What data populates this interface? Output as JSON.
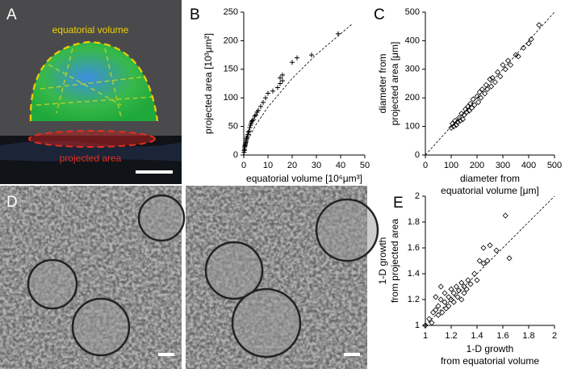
{
  "panel_labels": [
    "A",
    "B",
    "C",
    "D",
    "E"
  ],
  "image_a": {
    "labels": [
      "equatorial volume",
      "projected area"
    ]
  },
  "chart_data": [
    {
      "type": "scatter",
      "marker": "plus",
      "color": "#000000",
      "xlabel": "equatorial volume [10⁶μm³]",
      "ylabel": "projected area [10³μm²]",
      "xlim": [
        0,
        50
      ],
      "ylim": [
        0,
        250
      ],
      "xticks": [
        0,
        10,
        20,
        30,
        40,
        50
      ],
      "yticks": [
        0,
        50,
        100,
        150,
        200,
        250
      ],
      "x": [
        0.1,
        0.2,
        0.3,
        0.4,
        0.5,
        0.6,
        0.7,
        0.8,
        1,
        1.1,
        1.3,
        1.5,
        1.7,
        2,
        2.2,
        2.5,
        2.8,
        3,
        3.3,
        3.5,
        4,
        4.5,
        5,
        5.5,
        6,
        7,
        8,
        9,
        10,
        12,
        14,
        15,
        15,
        16,
        16,
        20,
        22,
        28,
        39
      ],
      "values": [
        5,
        8,
        10,
        14,
        16,
        18,
        20,
        22,
        25,
        28,
        30,
        33,
        36,
        40,
        42,
        48,
        52,
        55,
        58,
        60,
        62,
        68,
        70,
        75,
        78,
        85,
        92,
        100,
        108,
        112,
        118,
        125,
        135,
        140,
        130,
        162,
        170,
        175,
        212
      ],
      "fit": {
        "x": [
          0,
          2,
          5,
          10,
          20,
          30,
          45
        ],
        "values": [
          0,
          29,
          53,
          84,
          134,
          176,
          230
        ]
      }
    },
    {
      "type": "scatter",
      "marker": "diamond",
      "color": "#000000",
      "xlabel": [
        "diameter from",
        "equatorial volume [μm]"
      ],
      "ylabel": [
        "diameter from",
        "projected area [μm]"
      ],
      "xlim": [
        0,
        500
      ],
      "ylim": [
        0,
        500
      ],
      "xticks": [
        0,
        100,
        200,
        300,
        400,
        500
      ],
      "yticks": [
        0,
        100,
        200,
        300,
        400,
        500
      ],
      "x": [
        100,
        105,
        110,
        115,
        120,
        125,
        130,
        135,
        140,
        145,
        150,
        155,
        160,
        165,
        170,
        175,
        180,
        185,
        190,
        200,
        205,
        210,
        215,
        220,
        230,
        235,
        240,
        250,
        255,
        260,
        270,
        280,
        290,
        300,
        310,
        320,
        330,
        350,
        360,
        380,
        400,
        410,
        440
      ],
      "values": [
        95,
        110,
        100,
        120,
        105,
        115,
        130,
        120,
        145,
        125,
        140,
        160,
        150,
        170,
        155,
        180,
        165,
        195,
        175,
        205,
        185,
        220,
        200,
        230,
        215,
        245,
        230,
        265,
        240,
        270,
        255,
        290,
        275,
        315,
        300,
        330,
        315,
        350,
        345,
        375,
        390,
        405,
        455
      ],
      "fit": {
        "x": [
          0,
          500
        ],
        "values": [
          0,
          500
        ]
      }
    },
    {
      "type": "scatter",
      "marker": "diamond",
      "color": "#000000",
      "xlabel": [
        "1-D growth",
        "from equatorial volume"
      ],
      "ylabel": [
        "1-D growth",
        "from projected area"
      ],
      "xlim": [
        1,
        2
      ],
      "ylim": [
        1,
        2
      ],
      "xticks": [
        1,
        1.2,
        1.4,
        1.6,
        1.8,
        2
      ],
      "yticks": [
        1,
        1.2,
        1.4,
        1.6,
        1.8,
        2
      ],
      "x": [
        1.03,
        1.05,
        1.06,
        1.08,
        1.1,
        1.1,
        1.12,
        1.13,
        1.15,
        1.15,
        1.16,
        1.18,
        1.18,
        1.2,
        1.2,
        1.22,
        1.22,
        1.24,
        1.25,
        1.26,
        1.28,
        1.28,
        1.3,
        1.3,
        1.32,
        1.33,
        1.35,
        1.38,
        1.4,
        1.42,
        1.45,
        1.45,
        1.48,
        1.5,
        1.55,
        1.62,
        1.65,
        1.12,
        1.08,
        1.0
      ],
      "values": [
        1.05,
        1.02,
        1.1,
        1.12,
        1.15,
        1.08,
        1.2,
        1.1,
        1.18,
        1.25,
        1.13,
        1.22,
        1.15,
        1.28,
        1.2,
        1.25,
        1.18,
        1.3,
        1.22,
        1.27,
        1.33,
        1.2,
        1.25,
        1.3,
        1.28,
        1.35,
        1.32,
        1.4,
        1.35,
        1.5,
        1.48,
        1.6,
        1.5,
        1.62,
        1.58,
        1.85,
        1.52,
        1.3,
        1.22,
        1.0
      ],
      "fit": {
        "x": [
          1,
          2
        ],
        "values": [
          1,
          2
        ]
      }
    }
  ]
}
